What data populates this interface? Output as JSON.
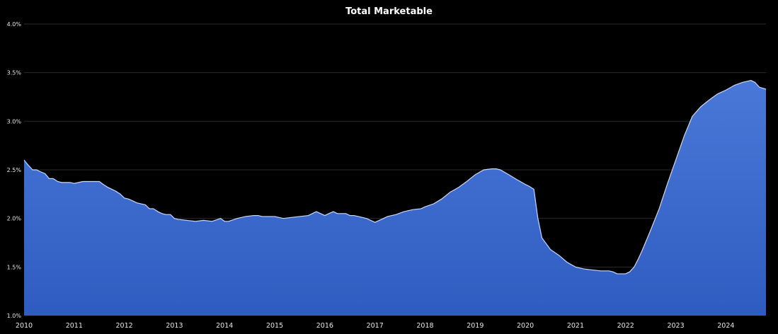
{
  "chart_data": {
    "type": "area",
    "title": "Total Marketable",
    "xlabel": "",
    "ylabel": "",
    "ylim": [
      1.0,
      4.0
    ],
    "xlim": [
      2010.0,
      2024.8
    ],
    "y_ticks": [
      "1.0%",
      "1.5%",
      "2.0%",
      "2.5%",
      "3.0%",
      "3.5%",
      "4.0%"
    ],
    "y_tick_values": [
      1.0,
      1.5,
      2.0,
      2.5,
      3.0,
      3.5,
      4.0
    ],
    "x_ticks": [
      "2010",
      "2011",
      "2012",
      "2013",
      "2014",
      "2015",
      "2016",
      "2017",
      "2018",
      "2019",
      "2020",
      "2021",
      "2022",
      "2023",
      "2024"
    ],
    "x_tick_values": [
      2010,
      2011,
      2012,
      2013,
      2014,
      2015,
      2016,
      2017,
      2018,
      2019,
      2020,
      2021,
      2022,
      2023,
      2024
    ],
    "grid": true,
    "legend": "none",
    "fill_color_top": "#4a78d8",
    "fill_color_bottom": "#2f5cc0",
    "line_color": "#c9d8ff",
    "series": [
      {
        "x": [
          2010.0,
          2010.08,
          2010.17,
          2010.25,
          2010.33,
          2010.42,
          2010.5,
          2010.58,
          2010.67,
          2010.75,
          2010.83,
          2010.92,
          2011.0,
          2011.17,
          2011.25,
          2011.33,
          2011.5,
          2011.58,
          2011.67,
          2011.75,
          2011.83,
          2011.92,
          2012.0,
          2012.08,
          2012.17,
          2012.25,
          2012.42,
          2012.5,
          2012.58,
          2012.67,
          2012.75,
          2012.83,
          2012.92,
          2013.0,
          2013.08,
          2013.25,
          2013.42,
          2013.58,
          2013.75,
          2013.92,
          2014.0,
          2014.08,
          2014.25,
          2014.42,
          2014.58,
          2014.67,
          2014.75,
          2014.92,
          2015.0,
          2015.17,
          2015.33,
          2015.5,
          2015.67,
          2015.75,
          2015.83,
          2016.0,
          2016.08,
          2016.17,
          2016.25,
          2016.33,
          2016.42,
          2016.5,
          2016.58,
          2016.67,
          2016.83,
          2017.0,
          2017.17,
          2017.25,
          2017.42,
          2017.58,
          2017.75,
          2017.92,
          2018.0,
          2018.17,
          2018.33,
          2018.5,
          2018.67,
          2018.83,
          2019.0,
          2019.17,
          2019.33,
          2019.42,
          2019.5,
          2019.67,
          2019.83,
          2020.0,
          2020.08,
          2020.17,
          2020.25,
          2020.33,
          2020.5,
          2020.67,
          2020.83,
          2021.0,
          2021.17,
          2021.33,
          2021.5,
          2021.67,
          2021.75,
          2021.83,
          2022.0,
          2022.08,
          2022.17,
          2022.25,
          2022.33,
          2022.5,
          2022.67,
          2022.83,
          2023.0,
          2023.17,
          2023.33,
          2023.5,
          2023.67,
          2023.83,
          2024.0,
          2024.17,
          2024.33,
          2024.5,
          2024.58,
          2024.67,
          2024.8
        ],
        "values": [
          2.6,
          2.55,
          2.5,
          2.5,
          2.48,
          2.46,
          2.41,
          2.41,
          2.38,
          2.37,
          2.37,
          2.37,
          2.36,
          2.38,
          2.38,
          2.38,
          2.38,
          2.35,
          2.32,
          2.3,
          2.28,
          2.25,
          2.21,
          2.2,
          2.18,
          2.16,
          2.14,
          2.1,
          2.1,
          2.07,
          2.05,
          2.04,
          2.04,
          2.0,
          1.99,
          1.98,
          1.97,
          1.98,
          1.97,
          2.0,
          1.97,
          1.97,
          2.0,
          2.02,
          2.03,
          2.03,
          2.02,
          2.02,
          2.02,
          2.0,
          2.01,
          2.02,
          2.03,
          2.05,
          2.07,
          2.03,
          2.05,
          2.07,
          2.05,
          2.05,
          2.05,
          2.03,
          2.03,
          2.02,
          2.0,
          1.96,
          2.0,
          2.02,
          2.04,
          2.07,
          2.09,
          2.1,
          2.12,
          2.15,
          2.2,
          2.27,
          2.32,
          2.38,
          2.45,
          2.5,
          2.51,
          2.51,
          2.5,
          2.45,
          2.4,
          2.35,
          2.33,
          2.3,
          2.0,
          1.8,
          1.68,
          1.62,
          1.55,
          1.5,
          1.48,
          1.47,
          1.46,
          1.46,
          1.45,
          1.43,
          1.43,
          1.45,
          1.5,
          1.58,
          1.67,
          1.88,
          2.1,
          2.35,
          2.6,
          2.85,
          3.05,
          3.15,
          3.22,
          3.28,
          3.32,
          3.37,
          3.4,
          3.42,
          3.4,
          3.35,
          3.33
        ]
      }
    ]
  }
}
